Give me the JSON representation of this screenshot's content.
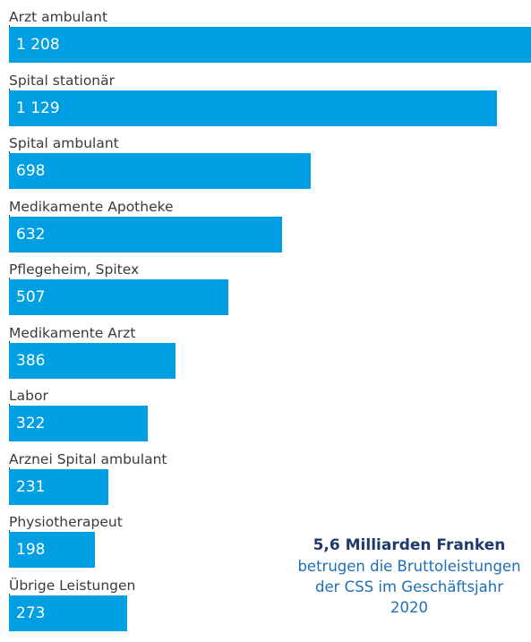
{
  "chart_data": {
    "type": "bar",
    "orientation": "horizontal",
    "categories": [
      "Arzt ambulant",
      "Spital stationär",
      "Spital ambulant",
      "Medikamente Apotheke",
      "Pflegeheim, Spitex",
      "Medikamente Arzt",
      "Labor",
      "Arznei Spital ambulant",
      "Physiotherapeut",
      "Übrige Leistungen"
    ],
    "values": [
      1208,
      1129,
      698,
      632,
      507,
      386,
      322,
      231,
      198,
      273
    ],
    "value_labels": [
      "1 208",
      "1 129",
      "698",
      "632",
      "507",
      "386",
      "322",
      "231",
      "198",
      "273"
    ],
    "bar_color": "#009fe3",
    "title": "",
    "xlabel": "",
    "ylabel": "",
    "grid": false,
    "legend": "none"
  },
  "note": {
    "title": "5,6 Milliarden Franken",
    "body": "betrugen die Brutto­leistungen der CSS im Geschäftsjahr 2020"
  }
}
